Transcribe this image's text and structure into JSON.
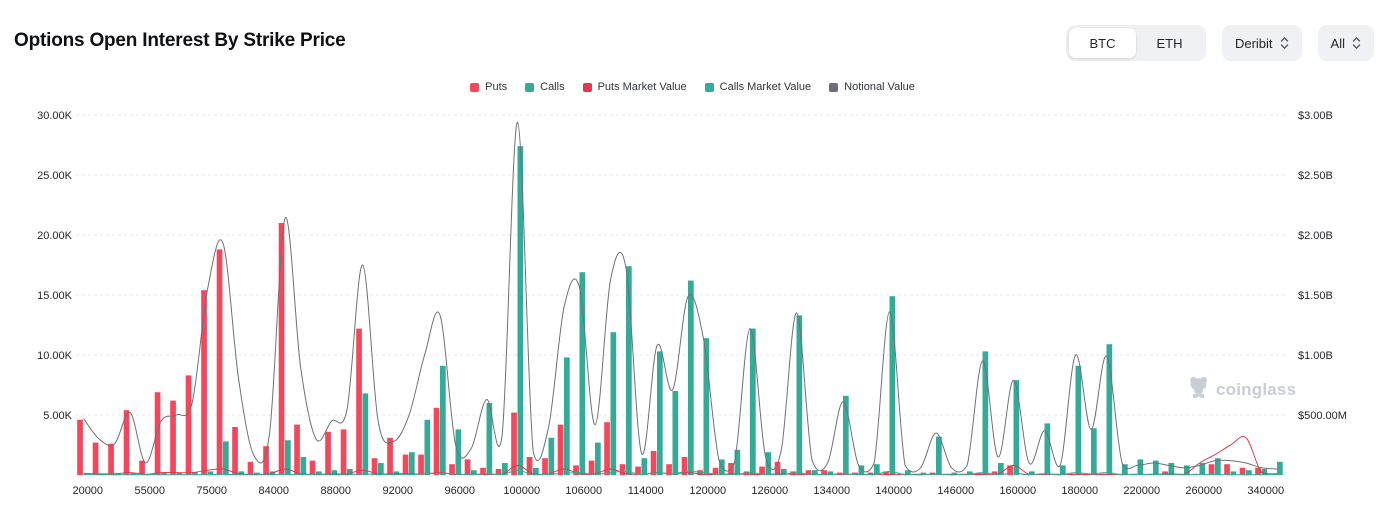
{
  "header": {
    "title": "Options Open Interest By Strike Price",
    "asset_toggle": {
      "options": [
        "BTC",
        "ETH"
      ],
      "selected": "BTC"
    },
    "exchange_select": {
      "value": "Deribit"
    },
    "range_select": {
      "value": "All"
    }
  },
  "watermark": {
    "text": "coinglass"
  },
  "colors": {
    "puts": "#f4475b",
    "calls": "#33ab97",
    "puts_mv_line": "#e4374f",
    "calls_mv_line": "#2fae99",
    "notional_line": "#6d7177",
    "grid": "#e8e9ec",
    "axis_text": "#23262b"
  },
  "chart_data": {
    "type": "bar",
    "note": "Grouped bars (Puts/Calls open interest, left axis, thousands of contracts) plus smooth value lines (right axis, $B). 78 strike slots; x labels shown every 4th slot.",
    "left_axis": {
      "ticks": [
        {
          "label": "5.00K",
          "k": 5
        },
        {
          "label": "10.00K",
          "k": 10
        },
        {
          "label": "15.00K",
          "k": 15
        },
        {
          "label": "20.00K",
          "k": 20
        },
        {
          "label": "25.00K",
          "k": 25
        },
        {
          "label": "30.00K",
          "k": 30
        }
      ]
    },
    "right_axis": {
      "ticks": [
        {
          "label": "$500.00M",
          "b": 0.5
        },
        {
          "label": "$1.00B",
          "b": 1.0
        },
        {
          "label": "$1.50B",
          "b": 1.5
        },
        {
          "label": "$2.00B",
          "b": 2.0
        },
        {
          "label": "$2.50B",
          "b": 2.5
        },
        {
          "label": "$3.00B",
          "b": 3.0
        }
      ]
    },
    "x_axis": {
      "labels": [
        "20000",
        "55000",
        "75000",
        "84000",
        "88000",
        "92000",
        "96000",
        "100000",
        "106000",
        "114000",
        "120000",
        "126000",
        "134000",
        "140000",
        "146000",
        "160000",
        "180000",
        "220000",
        "260000",
        "340000"
      ],
      "label_every": 4,
      "num_slots": 78
    },
    "series": [
      {
        "name": "Puts",
        "type": "bar",
        "axis": "left",
        "unit": "K contracts",
        "color": "#f4475b",
        "values": [
          4.6,
          2.7,
          2.6,
          5.4,
          1.2,
          6.9,
          6.2,
          8.3,
          15.4,
          18.8,
          4.0,
          1.1,
          2.4,
          21.0,
          4.2,
          1.2,
          3.6,
          3.8,
          12.2,
          1.4,
          3.1,
          1.7,
          1.7,
          5.6,
          0.9,
          1.3,
          0.6,
          0.5,
          5.2,
          1.5,
          1.4,
          4.2,
          0.8,
          1.2,
          4.4,
          0.9,
          0.7,
          2.0,
          0.9,
          1.5,
          0.4,
          0.6,
          1.0,
          0.3,
          0.7,
          1.1,
          0.3,
          0.4,
          0.4,
          0.2,
          0.2,
          0.2,
          0.3,
          0.1,
          0.1,
          0.2,
          0.1,
          0.1,
          0.2,
          0.3,
          0.8,
          0.1,
          0.1,
          0.1,
          0.1,
          0.1,
          0.1,
          0.1,
          0.1,
          0.1,
          0.3,
          0.1,
          0.1,
          0.9,
          0.9,
          0.6,
          0.6,
          0.1
        ]
      },
      {
        "name": "Calls",
        "type": "bar",
        "axis": "left",
        "unit": "K contracts",
        "color": "#33ab97",
        "values": [
          0.15,
          0.1,
          0.1,
          0.15,
          0.1,
          0.2,
          0.2,
          0.25,
          0.3,
          2.8,
          0.3,
          0.2,
          0.3,
          2.9,
          1.5,
          0.3,
          0.4,
          0.5,
          6.8,
          1.0,
          0.3,
          1.9,
          4.6,
          9.1,
          3.8,
          0.4,
          6.0,
          1.0,
          27.4,
          0.6,
          3.1,
          9.8,
          16.9,
          2.7,
          11.9,
          17.4,
          1.4,
          10.3,
          7.0,
          16.2,
          11.4,
          1.3,
          2.1,
          12.2,
          1.9,
          0.5,
          13.3,
          0.4,
          0.3,
          6.6,
          0.8,
          0.9,
          14.9,
          0.4,
          0.2,
          3.2,
          0.2,
          0.3,
          10.3,
          1.0,
          7.9,
          0.3,
          4.3,
          0.8,
          9.1,
          3.9,
          10.9,
          0.9,
          1.3,
          1.2,
          1.0,
          0.8,
          1.0,
          1.4,
          0.3,
          0.4,
          0.5,
          1.1
        ]
      },
      {
        "name": "Puts Market Value",
        "type": "line",
        "axis": "right",
        "unit": "$B",
        "color": "#e4374f",
        "values": [
          0.01,
          0.01,
          0.01,
          0.02,
          0.005,
          0.02,
          0.02,
          0.02,
          0.04,
          0.05,
          0.01,
          0.005,
          0.01,
          0.05,
          0.01,
          0.005,
          0.01,
          0.01,
          0.04,
          0.01,
          0.01,
          0.01,
          0.01,
          0.02,
          0.005,
          0.005,
          0.005,
          0.005,
          0.08,
          0.01,
          0.01,
          0.05,
          0.01,
          0.01,
          0.05,
          0.01,
          0.005,
          0.02,
          0.01,
          0.02,
          0.005,
          0.005,
          0.01,
          0.005,
          0.005,
          0.01,
          0.005,
          0.005,
          0.005,
          0.005,
          0.005,
          0.005,
          0.005,
          0.005,
          0.005,
          0.005,
          0.005,
          0.005,
          0.005,
          0.01,
          0.08,
          0.005,
          0.005,
          0.005,
          0.005,
          0.005,
          0.005,
          0.005,
          0.005,
          0.005,
          0.01,
          0.005,
          0.1,
          0.17,
          0.25,
          0.31,
          0.02,
          0.01
        ]
      },
      {
        "name": "Calls Market Value",
        "type": "line",
        "axis": "right",
        "unit": "$B",
        "color": "#2fae99",
        "values": [
          0.002,
          0.002,
          0.002,
          0.002,
          0.002,
          0.002,
          0.002,
          0.002,
          0.002,
          0.005,
          0.002,
          0.002,
          0.002,
          0.005,
          0.003,
          0.002,
          0.002,
          0.002,
          0.01,
          0.003,
          0.002,
          0.004,
          0.01,
          0.015,
          0.008,
          0.002,
          0.01,
          0.003,
          0.04,
          0.002,
          0.006,
          0.015,
          0.02,
          0.005,
          0.02,
          0.03,
          0.003,
          0.02,
          0.012,
          0.03,
          0.02,
          0.003,
          0.004,
          0.02,
          0.004,
          0.002,
          0.02,
          0.002,
          0.002,
          0.01,
          0.002,
          0.002,
          0.03,
          0.002,
          0.001,
          0.006,
          0.001,
          0.002,
          0.02,
          0.003,
          0.015,
          0.002,
          0.01,
          0.002,
          0.02,
          0.008,
          0.02,
          0.002,
          0.003,
          0.003,
          0.002,
          0.002,
          0.003,
          0.004,
          0.001,
          0.001,
          0.002,
          0.003
        ]
      },
      {
        "name": "Notional Value",
        "type": "line",
        "axis": "right",
        "unit": "$B",
        "color": "#6d7177",
        "values": [
          0.47,
          0.3,
          0.26,
          0.52,
          0.1,
          0.45,
          0.5,
          0.6,
          1.55,
          1.93,
          0.8,
          0.16,
          0.35,
          2.14,
          0.9,
          0.3,
          0.45,
          0.55,
          1.75,
          0.45,
          0.28,
          0.5,
          1.0,
          1.33,
          0.25,
          0.22,
          0.63,
          0.33,
          2.94,
          0.2,
          0.4,
          1.4,
          1.56,
          0.42,
          1.63,
          1.72,
          0.18,
          1.08,
          0.71,
          1.49,
          1.13,
          0.12,
          0.11,
          1.22,
          0.15,
          0.2,
          1.35,
          0.12,
          0.1,
          0.61,
          0.08,
          0.1,
          1.36,
          0.08,
          0.06,
          0.35,
          0.06,
          0.08,
          0.95,
          0.15,
          0.79,
          0.1,
          0.37,
          0.08,
          1.0,
          0.38,
          0.99,
          0.1,
          0.08,
          0.1,
          0.08,
          0.06,
          0.08,
          0.12,
          0.12,
          0.1,
          0.06,
          0.05
        ]
      }
    ]
  }
}
